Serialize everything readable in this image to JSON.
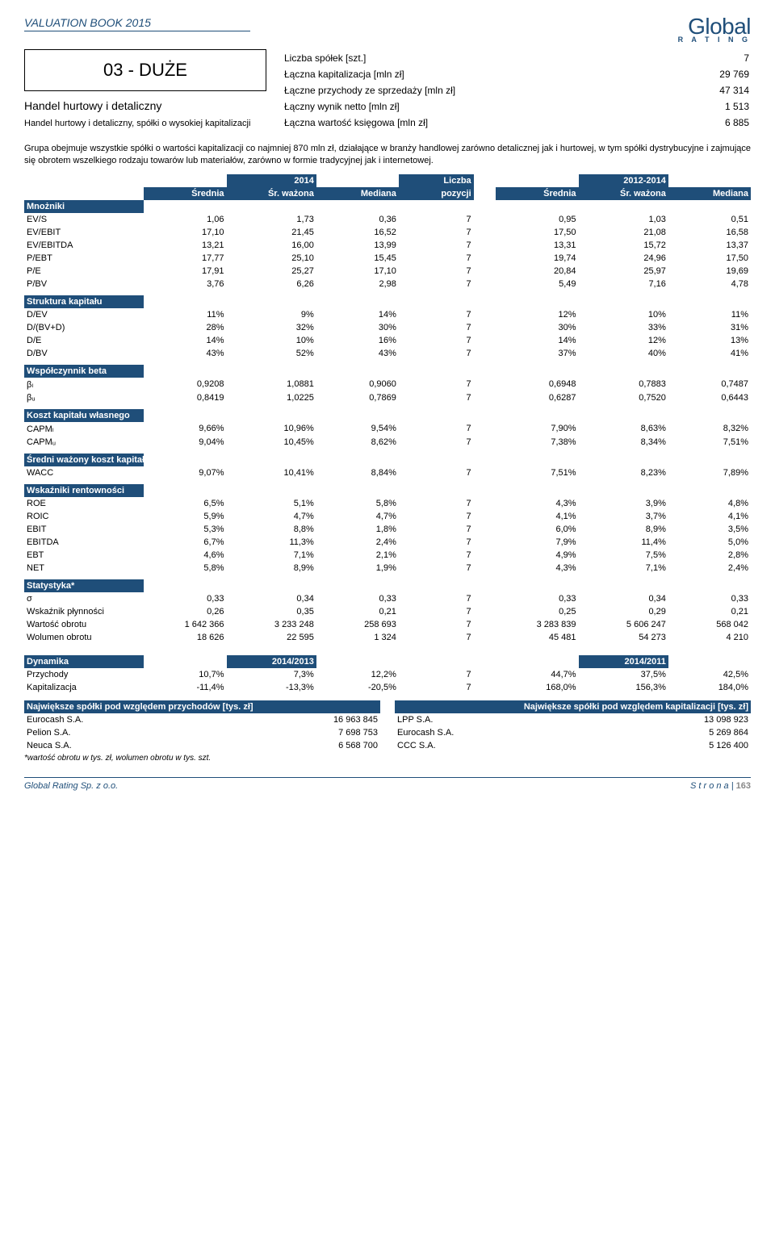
{
  "colors": {
    "brand": "#1f4e79",
    "bg": "#ffffff",
    "text": "#000000"
  },
  "header": {
    "title": "VALUATION BOOK 2015",
    "logo_main": "Global",
    "logo_sub": "R A T I N G"
  },
  "left": {
    "code": "03 - DUŻE",
    "sub1": "Handel hurtowy i detaliczny",
    "sub2": "Handel hurtowy i detaliczny, spółki o wysokiej kapitalizacji"
  },
  "stats": {
    "rows": [
      [
        "Liczba spółek [szt.]",
        "7"
      ],
      [
        "Łączna kapitalizacja [mln zł]",
        "29 769"
      ],
      [
        "Łączne przychody ze sprzedaży [mln zł]",
        "47 314"
      ],
      [
        "Łączny wynik netto [mln zł]",
        "1 513"
      ],
      [
        "Łączna wartość księgowa [mln zł]",
        "6 885"
      ]
    ]
  },
  "description": "Grupa obejmuje wszystkie spółki o wartości kapitalizacji co najmniej 870 mln zł, działające w branży handlowej zarówno detalicznej jak i hurtowej, w tym spółki dystrybucyjne i zajmujące się obrotem wszelkiego rodzaju towarów lub materiałów, zarówno w formie tradycyjnej jak i internetowej.",
  "table_headers": {
    "y2014": "2014",
    "liczba": "Liczba",
    "y2012_2014": "2012-2014",
    "srednia": "Średnia",
    "sr_wazona": "Śr. ważona",
    "mediana": "Mediana",
    "pozycji": "pozycji"
  },
  "sections": [
    {
      "title": "Mnożniki",
      "rows": [
        [
          "EV/S",
          "1,06",
          "1,73",
          "0,36",
          "7",
          "0,95",
          "1,03",
          "0,51"
        ],
        [
          "EV/EBIT",
          "17,10",
          "21,45",
          "16,52",
          "7",
          "17,50",
          "21,08",
          "16,58"
        ],
        [
          "EV/EBITDA",
          "13,21",
          "16,00",
          "13,99",
          "7",
          "13,31",
          "15,72",
          "13,37"
        ],
        [
          "P/EBT",
          "17,77",
          "25,10",
          "15,45",
          "7",
          "19,74",
          "24,96",
          "17,50"
        ],
        [
          "P/E",
          "17,91",
          "25,27",
          "17,10",
          "7",
          "20,84",
          "25,97",
          "19,69"
        ],
        [
          "P/BV",
          "3,76",
          "6,26",
          "2,98",
          "7",
          "5,49",
          "7,16",
          "4,78"
        ]
      ]
    },
    {
      "title": "Struktura kapitału",
      "rows": [
        [
          "D/EV",
          "11%",
          "9%",
          "14%",
          "7",
          "12%",
          "10%",
          "11%"
        ],
        [
          "D/(BV+D)",
          "28%",
          "32%",
          "30%",
          "7",
          "30%",
          "33%",
          "31%"
        ],
        [
          "D/E",
          "14%",
          "10%",
          "16%",
          "7",
          "14%",
          "12%",
          "13%"
        ],
        [
          "D/BV",
          "43%",
          "52%",
          "43%",
          "7",
          "37%",
          "40%",
          "41%"
        ]
      ]
    },
    {
      "title": "Współczynnik beta",
      "rows": [
        [
          "βₗ",
          "0,9208",
          "1,0881",
          "0,9060",
          "7",
          "0,6948",
          "0,7883",
          "0,7487"
        ],
        [
          "βᵤ",
          "0,8419",
          "1,0225",
          "0,7869",
          "7",
          "0,6287",
          "0,7520",
          "0,6443"
        ]
      ]
    },
    {
      "title": "Koszt kapitału własnego",
      "rows": [
        [
          "CAPMₗ",
          "9,66%",
          "10,96%",
          "9,54%",
          "7",
          "7,90%",
          "8,63%",
          "8,32%"
        ],
        [
          "CAPMᵤ",
          "9,04%",
          "10,45%",
          "8,62%",
          "7",
          "7,38%",
          "8,34%",
          "7,51%"
        ]
      ]
    },
    {
      "title": "Średni ważony koszt kapitału",
      "rows": [
        [
          "WACC",
          "9,07%",
          "10,41%",
          "8,84%",
          "7",
          "7,51%",
          "8,23%",
          "7,89%"
        ]
      ]
    },
    {
      "title": "Wskaźniki rentowności",
      "rows": [
        [
          "ROE",
          "6,5%",
          "5,1%",
          "5,8%",
          "7",
          "4,3%",
          "3,9%",
          "4,8%"
        ],
        [
          "ROIC",
          "5,9%",
          "4,7%",
          "4,7%",
          "7",
          "4,1%",
          "3,7%",
          "4,1%"
        ],
        [
          "EBIT",
          "5,3%",
          "8,8%",
          "1,8%",
          "7",
          "6,0%",
          "8,9%",
          "3,5%"
        ],
        [
          "EBITDA",
          "6,7%",
          "11,3%",
          "2,4%",
          "7",
          "7,9%",
          "11,4%",
          "5,0%"
        ],
        [
          "EBT",
          "4,6%",
          "7,1%",
          "2,1%",
          "7",
          "4,9%",
          "7,5%",
          "2,8%"
        ],
        [
          "NET",
          "5,8%",
          "8,9%",
          "1,9%",
          "7",
          "4,3%",
          "7,1%",
          "2,4%"
        ]
      ]
    },
    {
      "title": "Statystyka*",
      "rows": [
        [
          "σ",
          "0,33",
          "0,34",
          "0,33",
          "7",
          "0,33",
          "0,34",
          "0,33"
        ],
        [
          "Wskaźnik płynności",
          "0,26",
          "0,35",
          "0,21",
          "7",
          "0,25",
          "0,29",
          "0,21"
        ],
        [
          "Wartość obrotu",
          "1 642 366",
          "3 233 248",
          "258 693",
          "7",
          "3 283 839",
          "5 606 247",
          "568 042"
        ],
        [
          "Wolumen obrotu",
          "18 626",
          "22 595",
          "1 324",
          "7",
          "45 481",
          "54 273",
          "4 210"
        ]
      ]
    }
  ],
  "dynamika": {
    "title": "Dynamika",
    "h1": "2014/2013",
    "h2": "2014/2011",
    "rows": [
      [
        "Przychody",
        "10,7%",
        "7,3%",
        "12,2%",
        "7",
        "44,7%",
        "37,5%",
        "42,5%"
      ],
      [
        "Kapitalizacja",
        "-11,4%",
        "-13,3%",
        "-20,5%",
        "7",
        "168,0%",
        "156,3%",
        "184,0%"
      ]
    ]
  },
  "largest": {
    "h_left": "Największe spółki pod względem przychodów [tys. zł]",
    "h_right": "Największe spółki pod względem kapitalizacji [tys. zł]",
    "rows": [
      [
        "Eurocash S.A.",
        "16 963 845",
        "LPP S.A.",
        "13 098 923"
      ],
      [
        "Pelion S.A.",
        "7 698 753",
        "Eurocash S.A.",
        "5 269 864"
      ],
      [
        "Neuca S.A.",
        "6 568 700",
        "CCC S.A.",
        "5 126 400"
      ]
    ]
  },
  "footnote": "*wartość obrotu w tys. zł, wolumen obrotu w tys. szt.",
  "footer": {
    "left": "Global Rating Sp. z o.o.",
    "right_label": "S t r o n a  | ",
    "right_page": "163"
  }
}
